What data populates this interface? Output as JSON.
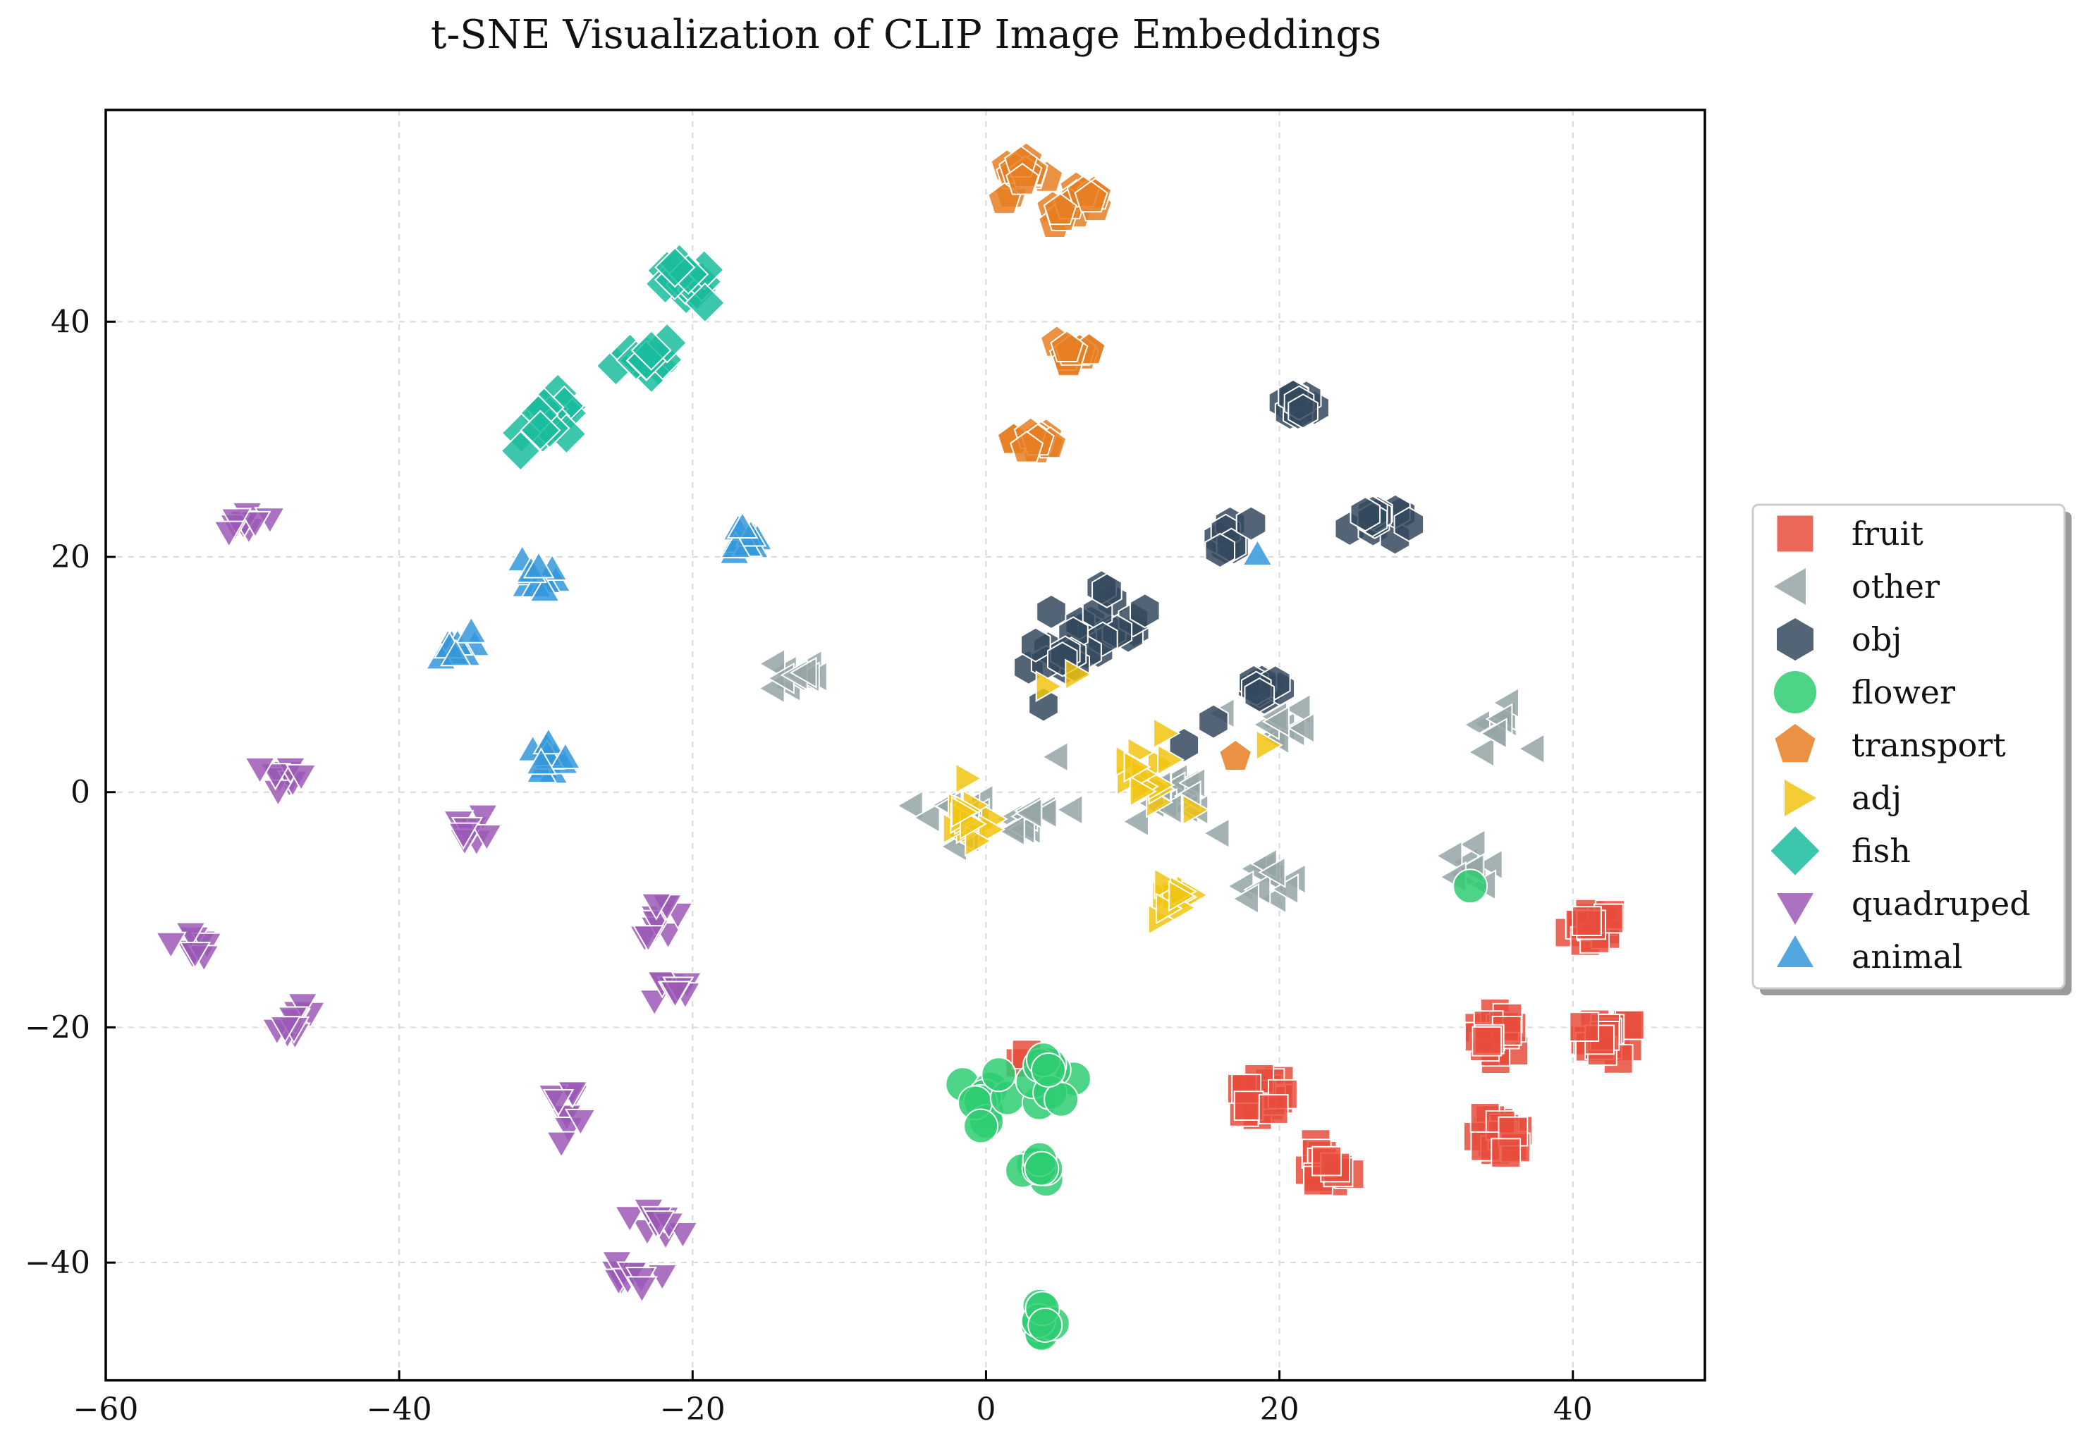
{
  "chart_data": {
    "type": "scatter",
    "title": "t-SNE Visualization of CLIP Image Embeddings",
    "xlabel": "",
    "ylabel": "",
    "xlim": [
      -60,
      49
    ],
    "ylim": [
      -50,
      58
    ],
    "xticks": [
      -60,
      -40,
      -20,
      0,
      20,
      40
    ],
    "yticks": [
      -40,
      -20,
      0,
      20,
      40
    ],
    "tick_labels": {
      "x": [
        "−60",
        "−40",
        "−20",
        "0",
        "20",
        "40"
      ],
      "y": [
        "−40",
        "−20",
        "0",
        "20",
        "40"
      ]
    },
    "grid": true,
    "legend_position": "right",
    "legend_entries": [
      "fruit",
      "other",
      "obj",
      "flower",
      "transport",
      "adj",
      "fish",
      "quadruped",
      "animal"
    ],
    "series": [
      {
        "name": "fruit",
        "marker": "square",
        "color": "#e74c3c",
        "clusters": [
          {
            "center": [
              41.5,
              -11.5
            ],
            "count": 18,
            "spread": 1.2
          },
          {
            "center": [
              35,
              -20.5
            ],
            "count": 18,
            "spread": 1.2
          },
          {
            "center": [
              42.5,
              -21
            ],
            "count": 18,
            "spread": 1.2
          },
          {
            "center": [
              18.5,
              -26
            ],
            "count": 18,
            "spread": 1.4
          },
          {
            "center": [
              23,
              -32
            ],
            "count": 16,
            "spread": 1.2
          },
          {
            "center": [
              35,
              -29.5
            ],
            "count": 18,
            "spread": 1.2
          },
          {
            "center": [
              3,
              -22.5
            ],
            "count": 2,
            "spread": 0.5
          }
        ]
      },
      {
        "name": "other",
        "marker": "triangle-left",
        "color": "#95a5a6",
        "clusters": [
          {
            "center": [
              -13,
              10
            ],
            "count": 14,
            "spread": 1.2
          },
          {
            "center": [
              -2,
              -2.5
            ],
            "count": 18,
            "spread": 1.8
          },
          {
            "center": [
              3,
              -2
            ],
            "count": 10,
            "spread": 1.5
          },
          {
            "center": [
              14,
              0
            ],
            "count": 14,
            "spread": 1.6
          },
          {
            "center": [
              20,
              5.5
            ],
            "count": 12,
            "spread": 1.5
          },
          {
            "center": [
              19,
              -7
            ],
            "count": 12,
            "spread": 1.4
          },
          {
            "center": [
              35,
              5.5
            ],
            "count": 10,
            "spread": 1.3
          },
          {
            "center": [
              33.5,
              -6.5
            ],
            "count": 10,
            "spread": 1.3
          }
        ],
        "points": [
          [
            5,
            3
          ],
          [
            6,
            -1.5
          ],
          [
            10.5,
            -2.5
          ],
          [
            16,
            -3.5
          ],
          [
            12,
            0.5
          ]
        ]
      },
      {
        "name": "obj",
        "marker": "hexagon",
        "color": "#34495e",
        "clusters": [
          {
            "center": [
              21,
              33
            ],
            "count": 10,
            "spread": 1.1
          },
          {
            "center": [
              26.5,
              23
            ],
            "count": 12,
            "spread": 1.2
          },
          {
            "center": [
              16.5,
              21.5
            ],
            "count": 8,
            "spread": 1.1
          },
          {
            "center": [
              8.5,
              15
            ],
            "count": 18,
            "spread": 2.0
          },
          {
            "center": [
              5,
              11
            ],
            "count": 12,
            "spread": 1.5
          },
          {
            "center": [
              19,
              9
            ],
            "count": 10,
            "spread": 1.1
          }
        ],
        "points": [
          [
            13.5,
            4
          ],
          [
            15.5,
            6
          ]
        ]
      },
      {
        "name": "flower",
        "marker": "circle",
        "color": "#2ecc71",
        "clusters": [
          {
            "center": [
              0,
              -26
            ],
            "count": 10,
            "spread": 1.3
          },
          {
            "center": [
              4.5,
              -24.5
            ],
            "count": 10,
            "spread": 1.3
          },
          {
            "center": [
              3.5,
              -32
            ],
            "count": 8,
            "spread": 0.9
          },
          {
            "center": [
              3.5,
              -45
            ],
            "count": 8,
            "spread": 0.8
          }
        ],
        "points": [
          [
            33,
            -8
          ]
        ]
      },
      {
        "name": "transport",
        "marker": "pentagon",
        "color": "#e67e22",
        "clusters": [
          {
            "center": [
              2.5,
              52
            ],
            "count": 14,
            "spread": 1.3
          },
          {
            "center": [
              6.5,
              50
            ],
            "count": 12,
            "spread": 1.3
          },
          {
            "center": [
              6,
              37.5
            ],
            "count": 12,
            "spread": 1.2
          },
          {
            "center": [
              3.5,
              30
            ],
            "count": 12,
            "spread": 1.1
          }
        ],
        "points": [
          [
            17,
            3
          ]
        ]
      },
      {
        "name": "adj",
        "marker": "triangle-right",
        "color": "#f1c40f",
        "clusters": [
          {
            "center": [
              -1,
              -2.5
            ],
            "count": 14,
            "spread": 1.6
          },
          {
            "center": [
              10.5,
              1
            ],
            "count": 14,
            "spread": 1.6
          },
          {
            "center": [
              12.5,
              -9.5
            ],
            "count": 12,
            "spread": 1.3
          }
        ],
        "points": [
          [
            4,
            9
          ],
          [
            6,
            10
          ],
          [
            12,
            5
          ],
          [
            19,
            4
          ],
          [
            14,
            -1.5
          ]
        ]
      },
      {
        "name": "fish",
        "marker": "diamond",
        "color": "#1abc9c",
        "clusters": [
          {
            "center": [
              -20.5,
              43
            ],
            "count": 14,
            "spread": 1.3
          },
          {
            "center": [
              -23,
              37
            ],
            "count": 12,
            "spread": 1.2
          },
          {
            "center": [
              -29.5,
              31.5
            ],
            "count": 16,
            "spread": 1.4
          }
        ]
      },
      {
        "name": "quadruped",
        "marker": "triangle-down",
        "color": "#9b59b6",
        "clusters": [
          {
            "center": [
              -50.5,
              23
            ],
            "count": 10,
            "spread": 1.0
          },
          {
            "center": [
              -47.5,
              1.5
            ],
            "count": 10,
            "spread": 1.0
          },
          {
            "center": [
              -35,
              -3
            ],
            "count": 8,
            "spread": 0.9
          },
          {
            "center": [
              -54,
              -12.5
            ],
            "count": 10,
            "spread": 1.0
          },
          {
            "center": [
              -47,
              -19.5
            ],
            "count": 10,
            "spread": 1.0
          },
          {
            "center": [
              -22,
              -10.5
            ],
            "count": 10,
            "spread": 1.1
          },
          {
            "center": [
              -21.5,
              -16.5
            ],
            "count": 10,
            "spread": 1.1
          },
          {
            "center": [
              -28.5,
              -26.5
            ],
            "count": 10,
            "spread": 1.1
          },
          {
            "center": [
              -22.5,
              -36
            ],
            "count": 10,
            "spread": 1.1
          },
          {
            "center": [
              -24.5,
              -41.5
            ],
            "count": 10,
            "spread": 1.1
          }
        ]
      },
      {
        "name": "animal",
        "marker": "triangle-up",
        "color": "#3498db",
        "clusters": [
          {
            "center": [
              -16.5,
              21
            ],
            "count": 10,
            "spread": 1.1
          },
          {
            "center": [
              -30.5,
              18.5
            ],
            "count": 10,
            "spread": 1.0
          },
          {
            "center": [
              -36.5,
              12
            ],
            "count": 10,
            "spread": 1.0
          },
          {
            "center": [
              -30,
              2.5
            ],
            "count": 12,
            "spread": 1.3
          }
        ],
        "points": [
          [
            18.5,
            20
          ]
        ]
      }
    ]
  }
}
